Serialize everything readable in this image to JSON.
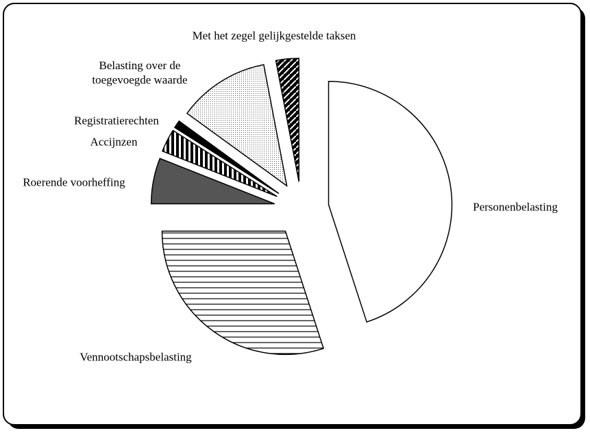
{
  "chart_data": {
    "type": "pie",
    "categories": [
      "Personenbelasting",
      "Vennootschapsbelasting",
      "Roerende voorheffing",
      "Accijnzen",
      "Registratierechten",
      "Belasting over de toegevoegde waarde",
      "Met het zegel gelijkgestelde taksen"
    ],
    "values": [
      45,
      30,
      6,
      3,
      1,
      12,
      3
    ],
    "patterns": [
      "none",
      "horizontal",
      "solid-gray",
      "vertical",
      "solid-black",
      "dots",
      "diagonal"
    ]
  }
}
